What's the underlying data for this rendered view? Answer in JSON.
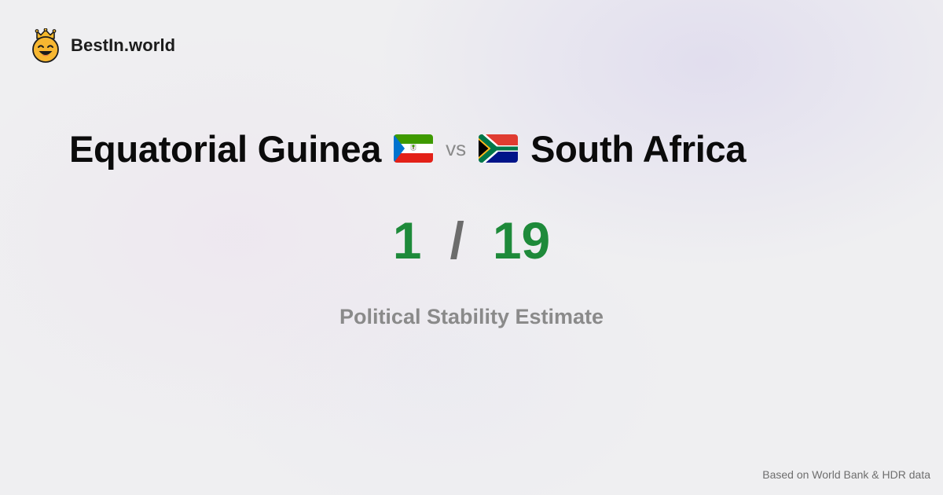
{
  "brand": {
    "name": "BestIn.world",
    "icon": "crowned-smiley-logo-icon"
  },
  "comparison": {
    "left": {
      "name": "Equatorial Guinea",
      "flag": "equatorial-guinea-flag-icon"
    },
    "separator": "vs",
    "right": {
      "name": "South Africa",
      "flag": "south-africa-flag-icon"
    }
  },
  "score": {
    "left": "1",
    "separator": "/",
    "right": "19"
  },
  "metric": {
    "label": "Political Stability Estimate"
  },
  "footer": {
    "source": "Based on World Bank & HDR data"
  },
  "colors": {
    "background": "#efeff1",
    "score_value": "#1e8a3a",
    "muted_text": "#8a8a8a",
    "headline_text": "#0b0b0b"
  }
}
